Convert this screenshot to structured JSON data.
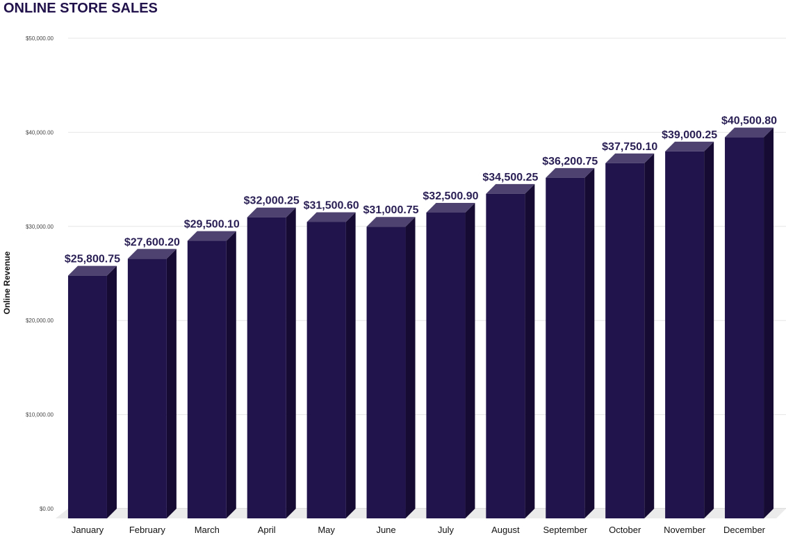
{
  "chart_data": {
    "type": "bar",
    "title": "ONLINE STORE SALES",
    "xlabel": "",
    "ylabel": "Online Revenue",
    "categories": [
      "January",
      "February",
      "March",
      "April",
      "May",
      "June",
      "July",
      "August",
      "September",
      "October",
      "November",
      "December"
    ],
    "values": [
      25800.75,
      27600.2,
      29500.1,
      32000.25,
      31500.6,
      31000.75,
      32500.9,
      34500.25,
      36200.75,
      37750.1,
      39000.25,
      40500.8
    ],
    "data_labels": [
      "$25,800.75",
      "$27,600.20",
      "$29,500.10",
      "$32,000.25",
      "$31,500.60",
      "$31,000.75",
      "$32,500.90",
      "$34,500.25",
      "$36,200.75",
      "$37,750.10",
      "$39,000.25",
      "$40,500.80"
    ],
    "ylim": [
      0,
      50000
    ],
    "yticks": [
      0,
      10000,
      20000,
      30000,
      40000,
      50000
    ],
    "ytick_labels": [
      "$0.00",
      "$10,000.00",
      "$20,000.00",
      "$30,000.00",
      "$40,000.00",
      "$50,000.00"
    ],
    "grid": true,
    "style": "3d-bar",
    "colors": {
      "bar_front": "#21134c",
      "bar_side": "#160c33",
      "bar_top": "#4e4370",
      "title": "#21124b",
      "label": "#2a1f55",
      "grid": "#e6e6e6",
      "floor": "#ebebeb"
    }
  }
}
